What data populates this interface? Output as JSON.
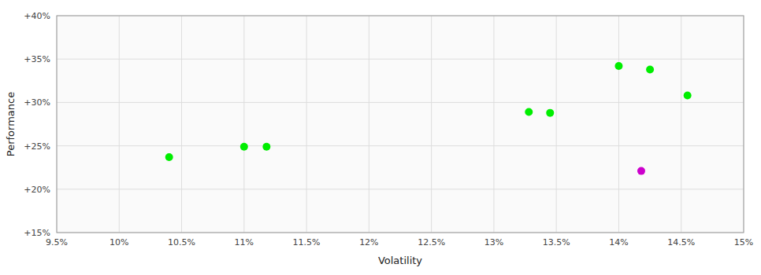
{
  "chart_data": {
    "type": "scatter",
    "xlabel": "Volatility",
    "ylabel": "Performance",
    "xlim": [
      0.095,
      0.15
    ],
    "ylim": [
      0.15,
      0.4
    ],
    "xticks": [
      {
        "value": 0.095,
        "label": "9.5%"
      },
      {
        "value": 0.1,
        "label": "10%"
      },
      {
        "value": 0.105,
        "label": "10.5%"
      },
      {
        "value": 0.11,
        "label": "11%"
      },
      {
        "value": 0.115,
        "label": "11.5%"
      },
      {
        "value": 0.12,
        "label": "12%"
      },
      {
        "value": 0.125,
        "label": "12.5%"
      },
      {
        "value": 0.13,
        "label": "13%"
      },
      {
        "value": 0.135,
        "label": "13.5%"
      },
      {
        "value": 0.14,
        "label": "14%"
      },
      {
        "value": 0.145,
        "label": "14.5%"
      },
      {
        "value": 0.15,
        "label": "15%"
      }
    ],
    "yticks": [
      {
        "value": 0.15,
        "label": "+15%"
      },
      {
        "value": 0.2,
        "label": "+20%"
      },
      {
        "value": 0.25,
        "label": "+25%"
      },
      {
        "value": 0.3,
        "label": "+30%"
      },
      {
        "value": 0.35,
        "label": "+35%"
      },
      {
        "value": 0.4,
        "label": "+40%"
      }
    ],
    "grid": true,
    "series": [
      {
        "color": "#00ee00",
        "x": [
          0.104,
          0.11,
          0.1118,
          0.1328,
          0.1345,
          0.14,
          0.1425,
          0.1455
        ],
        "values": [
          0.237,
          0.249,
          0.249,
          0.289,
          0.288,
          0.342,
          0.338,
          0.308
        ]
      },
      {
        "color": "#cc00cc",
        "x": [
          0.1418
        ],
        "values": [
          0.221
        ]
      }
    ]
  }
}
